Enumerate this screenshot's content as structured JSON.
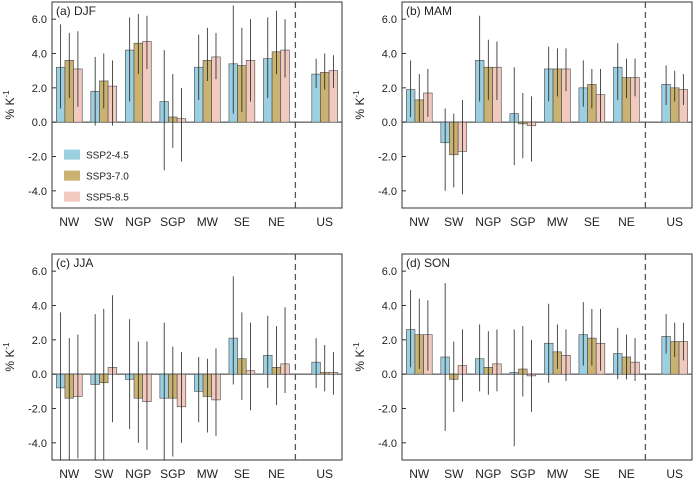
{
  "figure": {
    "ylabel_main": "% K",
    "ylabel_sup": "-1",
    "legend": [
      "SSP2-4.5",
      "SSP3-7.0",
      "SSP5-8.5"
    ],
    "colors": [
      "#9ccfe0",
      "#c9b272",
      "#f2c9bf"
    ],
    "bar_edge": "#4a4a4a"
  },
  "chart_data": [
    {
      "type": "bar",
      "title": "(a) DJF",
      "categories": [
        "NW",
        "SW",
        "NGP",
        "SGP",
        "MW",
        "SE",
        "NE",
        "US"
      ],
      "ylim": [
        -5,
        7
      ],
      "yticks": [
        -4,
        -2,
        0,
        2,
        4,
        6
      ],
      "ytick_labels": [
        "-4.0",
        "-2.0",
        "0.0",
        "2.0",
        "4.0",
        "6.0"
      ],
      "legend_placement": "lower-left",
      "series": [
        {
          "name": "SSP2-4.5",
          "values": [
            3.2,
            1.8,
            4.2,
            1.2,
            3.2,
            3.4,
            3.7,
            2.8
          ],
          "low": [
            0.8,
            -0.2,
            1.2,
            -2.8,
            1.3,
            0.5,
            1.4,
            2.0
          ],
          "high": [
            5.7,
            3.8,
            6.1,
            4.2,
            5.1,
            6.8,
            6.1,
            3.7
          ]
        },
        {
          "name": "SSP3-7.0",
          "values": [
            3.6,
            2.4,
            4.6,
            0.3,
            3.6,
            3.3,
            4.1,
            2.9
          ],
          "low": [
            1.4,
            0.8,
            2.8,
            -1.5,
            2.4,
            0.6,
            2.8,
            1.9
          ],
          "high": [
            5.2,
            4.0,
            6.3,
            2.8,
            5.5,
            5.5,
            6.5,
            4.0
          ]
        },
        {
          "name": "SSP5-8.5",
          "values": [
            3.1,
            2.1,
            4.7,
            0.2,
            3.8,
            3.6,
            4.2,
            3.0
          ],
          "low": [
            0.9,
            -0.2,
            3.1,
            -2.3,
            2.5,
            1.2,
            2.6,
            2.0
          ],
          "high": [
            5.3,
            3.6,
            6.2,
            2.0,
            5.2,
            6.0,
            6.0,
            3.9
          ]
        }
      ]
    },
    {
      "type": "bar",
      "title": "(b) MAM",
      "categories": [
        "NW",
        "SW",
        "NGP",
        "SGP",
        "MW",
        "SE",
        "NE",
        "US"
      ],
      "ylim": [
        -5,
        7
      ],
      "yticks": [
        -4,
        -2,
        0,
        2,
        4,
        6
      ],
      "ytick_labels": [
        "-4.0",
        "-2.0",
        "0.0",
        "2.0",
        "4.0",
        "6.0"
      ],
      "series": [
        {
          "name": "SSP2-4.5",
          "values": [
            1.9,
            -1.2,
            3.6,
            0.5,
            3.1,
            2.0,
            3.2,
            2.2
          ],
          "low": [
            0.3,
            -4.0,
            1.2,
            -2.5,
            1.2,
            0.9,
            1.3,
            1.0
          ],
          "high": [
            3.6,
            0.8,
            6.2,
            3.2,
            4.4,
            3.6,
            4.6,
            3.3
          ]
        },
        {
          "name": "SSP3-7.0",
          "values": [
            1.3,
            -1.9,
            3.2,
            -0.1,
            3.1,
            2.2,
            2.6,
            2.0
          ],
          "low": [
            0.0,
            -3.8,
            1.3,
            -2.1,
            1.5,
            0.8,
            1.4,
            1.2
          ],
          "high": [
            2.8,
            0.5,
            4.8,
            1.7,
            4.3,
            3.1,
            3.7,
            3.0
          ]
        },
        {
          "name": "SSP5-8.5",
          "values": [
            1.7,
            -1.7,
            3.2,
            -0.2,
            3.1,
            1.6,
            2.6,
            1.9
          ],
          "low": [
            0.3,
            -4.2,
            1.3,
            -2.3,
            1.8,
            0.0,
            1.5,
            1.0
          ],
          "high": [
            3.1,
            1.3,
            4.7,
            1.5,
            4.3,
            3.1,
            3.7,
            2.8
          ]
        }
      ]
    },
    {
      "type": "bar",
      "title": "(c) JJA",
      "categories": [
        "NW",
        "SW",
        "NGP",
        "SGP",
        "MW",
        "SE",
        "NE",
        "US"
      ],
      "ylim": [
        -5,
        7
      ],
      "yticks": [
        -4,
        -2,
        0,
        2,
        4,
        6
      ],
      "ytick_labels": [
        "-4.0",
        "-2.0",
        "0.0",
        "2.0",
        "4.0",
        "6.0"
      ],
      "series": [
        {
          "name": "SSP2-4.5",
          "values": [
            -0.8,
            -0.6,
            -0.3,
            -1.4,
            -1.0,
            2.1,
            1.1,
            0.7
          ],
          "low": [
            -5.0,
            -5.0,
            -3.2,
            -5.0,
            -2.8,
            -0.6,
            -0.8,
            -0.8
          ],
          "high": [
            3.6,
            3.5,
            3.2,
            3.0,
            1.0,
            5.7,
            3.4,
            2.1
          ]
        },
        {
          "name": "SSP3-7.0",
          "values": [
            -1.4,
            -0.5,
            -1.4,
            -1.4,
            -1.3,
            0.9,
            0.4,
            0.1
          ],
          "low": [
            -5.0,
            -5.0,
            -4.0,
            -4.8,
            -3.4,
            -1.5,
            -1.8,
            -1.0
          ],
          "high": [
            2.1,
            3.8,
            1.9,
            1.6,
            0.9,
            3.6,
            2.8,
            1.7
          ]
        },
        {
          "name": "SSP5-8.5",
          "values": [
            -1.3,
            0.4,
            -1.6,
            -1.9,
            -1.5,
            0.2,
            0.6,
            0.1
          ],
          "low": [
            -4.9,
            -2.8,
            -4.4,
            -4.0,
            -3.6,
            -2.1,
            -1.1,
            -1.2
          ],
          "high": [
            2.3,
            4.6,
            1.9,
            1.3,
            1.5,
            3.0,
            3.9,
            1.3
          ]
        }
      ]
    },
    {
      "type": "bar",
      "title": "(d) SON",
      "categories": [
        "NW",
        "SW",
        "NGP",
        "SGP",
        "MW",
        "SE",
        "NE",
        "US"
      ],
      "ylim": [
        -5,
        7
      ],
      "yticks": [
        -4,
        -2,
        0,
        2,
        4,
        6
      ],
      "ytick_labels": [
        "-4.0",
        "-2.0",
        "0.0",
        "2.0",
        "4.0",
        "6.0"
      ],
      "series": [
        {
          "name": "SSP2-4.5",
          "values": [
            2.6,
            1.0,
            0.9,
            0.1,
            1.8,
            2.3,
            1.2,
            2.2
          ],
          "low": [
            0.4,
            -3.3,
            -1.0,
            -4.2,
            -0.5,
            0.5,
            -0.3,
            1.2
          ],
          "high": [
            4.9,
            5.3,
            2.9,
            2.6,
            4.1,
            4.2,
            2.7,
            3.5
          ]
        },
        {
          "name": "SSP3-7.0",
          "values": [
            2.3,
            -0.3,
            0.4,
            0.3,
            1.3,
            2.1,
            1.0,
            1.9
          ],
          "low": [
            0.3,
            -2.2,
            -1.2,
            -1.3,
            0.3,
            0.5,
            -0.3,
            1.0
          ],
          "high": [
            4.4,
            1.9,
            2.5,
            2.8,
            2.9,
            3.8,
            2.3,
            3.0
          ]
        },
        {
          "name": "SSP5-8.5",
          "values": [
            2.3,
            0.5,
            0.6,
            -0.1,
            1.1,
            1.8,
            0.7,
            1.9
          ],
          "low": [
            0.2,
            -1.6,
            -1.0,
            -2.2,
            -0.4,
            0.2,
            -0.4,
            0.8
          ],
          "high": [
            4.3,
            2.6,
            2.6,
            2.0,
            2.6,
            3.8,
            2.1,
            3.0
          ]
        }
      ]
    }
  ]
}
